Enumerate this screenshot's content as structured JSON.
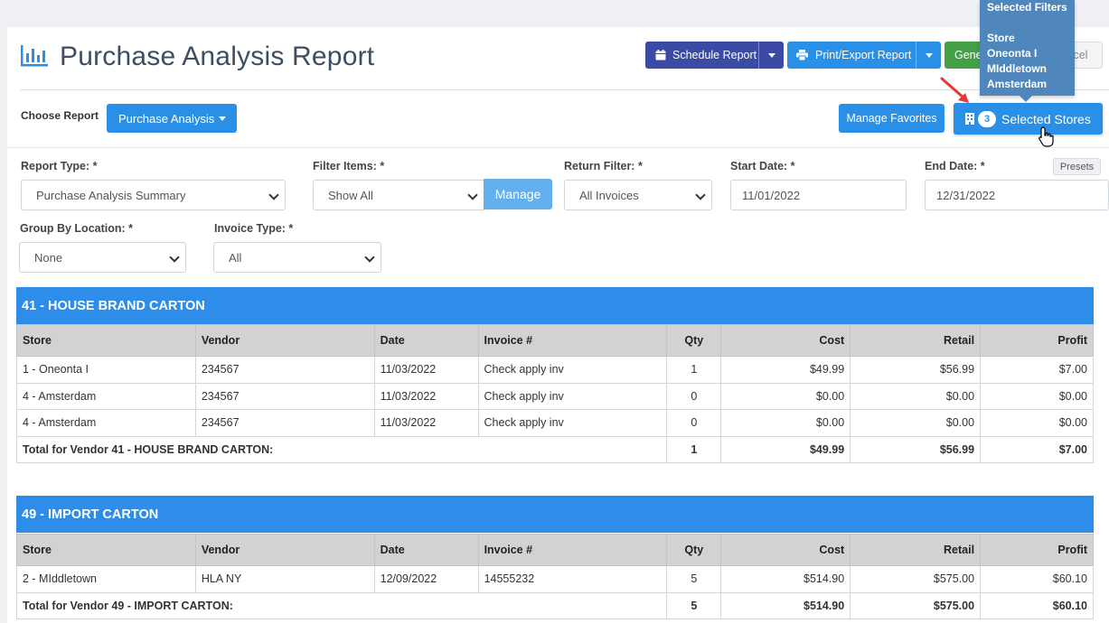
{
  "header": {
    "title": "Purchase Analysis Report",
    "schedule_label": "Schedule Report",
    "print_label": "Print/Export Report",
    "generate_label": "Gene",
    "cancel_label": "Cancel"
  },
  "choose_report": {
    "label": "Choose Report",
    "dropdown_label": "Purchase Analysis",
    "manage_favorites": "Manage Favorites",
    "selected_stores_count": "3",
    "selected_stores_label": "Selected Stores"
  },
  "tooltip": {
    "heading": "Selected Filters",
    "subheading": "Store",
    "items": [
      "Oneonta I",
      "MIddletown",
      "Amsterdam"
    ]
  },
  "filters": {
    "report_type_label": "Report Type: *",
    "report_type_value": "Purchase Analysis Summary",
    "filter_items_label": "Filter Items: *",
    "filter_items_value": "Show All",
    "manage_label": "Manage",
    "return_filter_label": "Return Filter: *",
    "return_filter_value": "All Invoices",
    "start_date_label": "Start Date: *",
    "start_date_value": "11/01/2022",
    "end_date_label": "End Date: *",
    "end_date_value": "12/31/2022",
    "presets_label": "Presets",
    "group_by_label": "Group By Location: *",
    "group_by_value": "None",
    "invoice_type_label": "Invoice Type: *",
    "invoice_type_value": "All"
  },
  "columns": [
    "Store",
    "Vendor",
    "Date",
    "Invoice #",
    "Qty",
    "Cost",
    "Retail",
    "Profit"
  ],
  "groups": [
    {
      "title": "41 - HOUSE BRAND CARTON",
      "rows": [
        [
          "1 - Oneonta I",
          "234567",
          "11/03/2022",
          "Check apply inv",
          "1",
          "$49.99",
          "$56.99",
          "$7.00"
        ],
        [
          "4 - Amsterdam",
          "234567",
          "11/03/2022",
          "Check apply inv",
          "0",
          "$0.00",
          "$0.00",
          "$0.00"
        ],
        [
          "4 - Amsterdam",
          "234567",
          "11/03/2022",
          "Check apply inv",
          "0",
          "$0.00",
          "$0.00",
          "$0.00"
        ]
      ],
      "total": [
        "Total for Vendor 41 - HOUSE BRAND CARTON:",
        "1",
        "$49.99",
        "$56.99",
        "$7.00"
      ]
    },
    {
      "title": "49 - IMPORT CARTON",
      "rows": [
        [
          "2 - MIddletown",
          "HLA NY",
          "12/09/2022",
          "14555232",
          "5",
          "$514.90",
          "$575.00",
          "$60.10"
        ]
      ],
      "total": [
        "Total for Vendor 49 - IMPORT CARTON:",
        "5",
        "$514.90",
        "$575.00",
        "$60.10"
      ]
    }
  ]
}
